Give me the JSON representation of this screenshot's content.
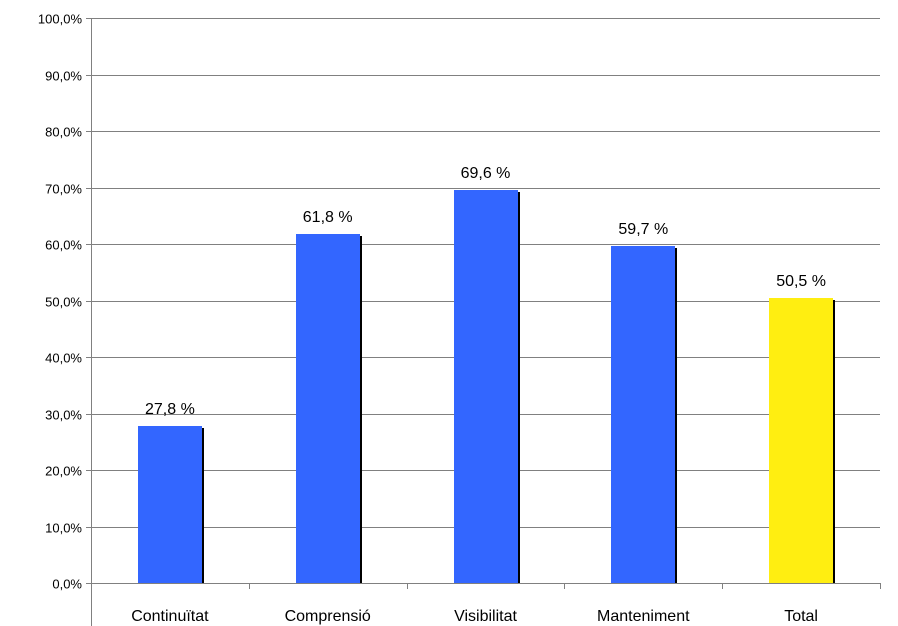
{
  "chart_data": {
    "type": "bar",
    "title": "",
    "xlabel": "",
    "ylabel": "",
    "ylim": [
      0,
      100
    ],
    "y_tick_step": 10,
    "y_tick_labels": [
      "0,0%",
      "10,0%",
      "20,0%",
      "30,0%",
      "40,0%",
      "50,0%",
      "60,0%",
      "70,0%",
      "80,0%",
      "90,0%",
      "100,0%"
    ],
    "grid": true,
    "legend": "none",
    "categories": [
      "Continuïtat",
      "Comprensió",
      "Visibilitat",
      "Manteniment",
      "Total"
    ],
    "values": [
      27.8,
      61.8,
      69.6,
      59.7,
      50.5
    ],
    "data_labels": [
      "27,8 %",
      "61,8 %",
      "69,6 %",
      "59,7 %",
      "50,5 %"
    ],
    "colors": [
      "#3366ff",
      "#3366ff",
      "#3366ff",
      "#3366ff",
      "#ffee11"
    ],
    "shadow_color": "#000000",
    "grid_color": "#808080"
  }
}
